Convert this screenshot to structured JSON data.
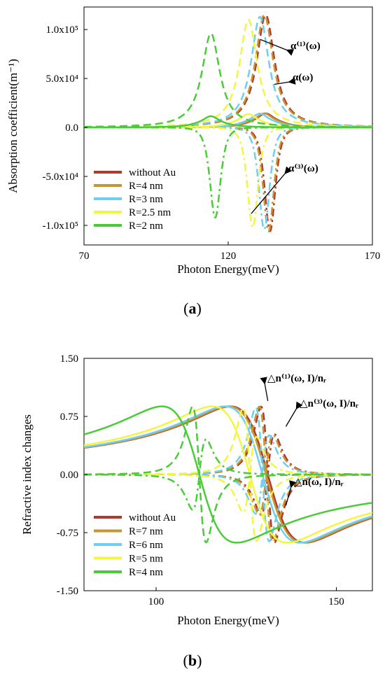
{
  "chart_data": [
    {
      "type": "line",
      "panel_label": "(a)",
      "panel_letter": "a",
      "xlabel": "Photon Energy(meV)",
      "ylabel": "Absorption coefficient(m⁻¹)",
      "xlim": [
        70,
        170
      ],
      "ylim": [
        -120000,
        123000
      ],
      "x_ticks": [
        70,
        120,
        170
      ],
      "x_tick_labels": [
        "70",
        "120",
        "170"
      ],
      "y_ticks": [
        100000,
        50000,
        0,
        -50000,
        -100000
      ],
      "y_tick_labels": [
        "1.0x10⁵",
        "5.0x10⁴",
        "0.0",
        "-5.0x10⁴",
        "-1.0x10⁵"
      ],
      "legend_position": "bottom-left",
      "annotations": [
        {
          "text": "α⁽¹⁾(ω)",
          "points_to": {
            "x": 131,
            "y": 90000
          }
        },
        {
          "text": "α(ω)",
          "points_to": {
            "x": 136,
            "y": 44000
          }
        },
        {
          "text": "α⁽³⁾(ω)",
          "points_to": {
            "x": 128,
            "y": -88000
          }
        }
      ],
      "series": [
        {
          "name": "without Au",
          "color": "#b03a2e",
          "E0": 133,
          "G": 7.5,
          "a1": 115000,
          "a3": -106000
        },
        {
          "name": "R=4 nm",
          "color": "#c8962e",
          "E0": 132.5,
          "G": 7.5,
          "a1": 115000,
          "a3": -106000
        },
        {
          "name": "R=3 nm",
          "color": "#6ecff2",
          "E0": 131,
          "G": 7.5,
          "a1": 113000,
          "a3": -104000
        },
        {
          "name": "R=2.5 nm",
          "color": "#f2f542",
          "E0": 127,
          "G": 7.5,
          "a1": 110000,
          "a3": -102000
        },
        {
          "name": "R=2 nm",
          "color": "#4ccb3a",
          "E0": 114,
          "G": 7.5,
          "a1": 96000,
          "a3": -92000
        }
      ]
    },
    {
      "type": "line",
      "panel_label": "(b)",
      "panel_letter": "b",
      "xlabel": "Photon Energy(meV)",
      "ylabel": "Refractive index changes",
      "xlim": [
        80,
        160
      ],
      "ylim": [
        -1.5,
        1.5
      ],
      "x_ticks": [
        100,
        150
      ],
      "x_tick_labels": [
        "100",
        "150"
      ],
      "y_ticks": [
        1.5,
        0.75,
        0,
        -0.75,
        -1.5
      ],
      "y_tick_labels": [
        "1.50",
        "0.75",
        "0.00",
        "-0.75",
        "-1.50"
      ],
      "legend_position": "bottom-left",
      "annotations": [
        {
          "text": "△n⁽¹⁾(ω, I)/nᵣ",
          "points_to": {
            "x": 131,
            "y": 0.95
          }
        },
        {
          "text": "△n⁽³⁾(ω, I)/nᵣ",
          "points_to": {
            "x": 136,
            "y": 0.62
          }
        },
        {
          "text": "△n(ω, I)/nᵣ",
          "points_to": {
            "x": 136,
            "y": -0.4
          }
        }
      ],
      "series": [
        {
          "name": "without Au",
          "color": "#b03a2e",
          "E0": 131,
          "G": 6.5,
          "a1": 1.35,
          "a3": 0.8,
          "s": 0.88
        },
        {
          "name": "R=7 nm",
          "color": "#c8962e",
          "E0": 130.5,
          "G": 6.5,
          "a1": 1.35,
          "a3": 0.8,
          "s": 0.88
        },
        {
          "name": "R=6 nm",
          "color": "#6ecff2",
          "E0": 129.5,
          "G": 6.5,
          "a1": 1.33,
          "a3": 0.78,
          "s": 0.88
        },
        {
          "name": "R=5 nm",
          "color": "#f2f542",
          "E0": 126,
          "G": 6.5,
          "a1": 1.32,
          "a3": 0.75,
          "s": 0.88
        },
        {
          "name": "R=4 nm",
          "color": "#4ccb3a",
          "E0": 112,
          "G": 6.5,
          "a1": 1.35,
          "a3": 0.7,
          "s": 0.88
        }
      ]
    }
  ]
}
